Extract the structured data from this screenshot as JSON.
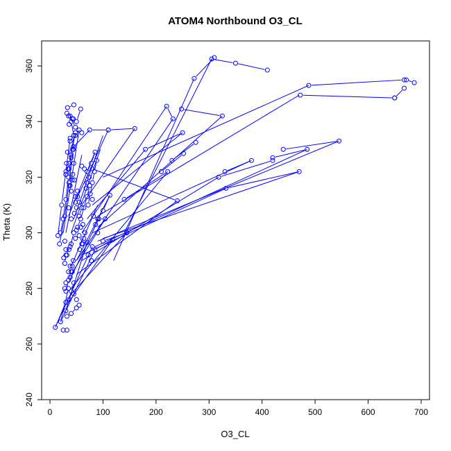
{
  "chart_data": {
    "type": "scatter",
    "title": "ATOM4 Northbound O3_CL",
    "xlabel": "O3_CL",
    "ylabel": "Theta (K)",
    "xlim": [
      0,
      700
    ],
    "ylim": [
      240,
      365
    ],
    "xticks": [
      0,
      100,
      200,
      300,
      400,
      500,
      600,
      700
    ],
    "yticks": [
      240,
      260,
      280,
      300,
      320,
      340,
      360
    ],
    "grid": false,
    "legend": "none",
    "color": "#0000ff",
    "marker": "open-circle",
    "connected": true,
    "series": [
      {
        "x": [
          305,
          350,
          410
        ],
        "y": [
          362.5,
          361,
          358.5
        ]
      },
      {
        "x": [
          272,
          310
        ],
        "y": [
          355.5,
          363
        ]
      },
      {
        "x": [
          672,
          687
        ],
        "y": [
          355,
          354
        ]
      },
      {
        "x": [
          488,
          668
        ],
        "y": [
          353,
          355
        ]
      },
      {
        "x": [
          650,
          668
        ],
        "y": [
          348.5,
          352
        ]
      },
      {
        "x": [
          472,
          650
        ],
        "y": [
          349.5,
          348.5
        ]
      },
      {
        "x": [
          248,
          325
        ],
        "y": [
          344.5,
          342
        ]
      },
      {
        "x": [
          220,
          232
        ],
        "y": [
          345.5,
          341
        ]
      },
      {
        "x": [
          33,
          45
        ],
        "y": [
          345,
          346
        ]
      },
      {
        "x": [
          58,
          50
        ],
        "y": [
          344.5,
          340
        ]
      },
      {
        "x": [
          32,
          44
        ],
        "y": [
          343,
          341
        ]
      },
      {
        "x": [
          38,
          48
        ],
        "y": [
          342,
          338
        ]
      },
      {
        "x": [
          110,
          160
        ],
        "y": [
          337,
          337.5
        ]
      },
      {
        "x": [
          75,
          110
        ],
        "y": [
          337,
          337
        ]
      },
      {
        "x": [
          55,
          60
        ],
        "y": [
          337,
          336
        ]
      },
      {
        "x": [
          250,
          180
        ],
        "y": [
          336,
          330
        ]
      },
      {
        "x": [
          275,
          230
        ],
        "y": [
          332.5,
          326
        ]
      },
      {
        "x": [
          252,
          210
        ],
        "y": [
          328.5,
          322
        ]
      },
      {
        "x": [
          485,
          420
        ],
        "y": [
          330,
          327
        ]
      },
      {
        "x": [
          545,
          440
        ],
        "y": [
          333,
          330
        ]
      },
      {
        "x": [
          380,
          330
        ],
        "y": [
          326,
          322
        ]
      },
      {
        "x": [
          20,
          25,
          30,
          35,
          40,
          45,
          40,
          35
        ],
        "y": [
          300,
          305,
          312,
          320,
          328,
          335,
          340,
          342
        ]
      },
      {
        "x": [
          15,
          22,
          30,
          38
        ],
        "y": [
          299,
          310,
          322,
          334
        ]
      },
      {
        "x": [
          18,
          28,
          36,
          44
        ],
        "y": [
          296,
          306,
          318,
          330
        ]
      },
      {
        "x": [
          30,
          36,
          42,
          48
        ],
        "y": [
          321,
          325,
          330,
          336
        ]
      },
      {
        "x": [
          60,
          65,
          70,
          78,
          85
        ],
        "y": [
          324,
          323,
          322,
          325,
          329
        ]
      },
      {
        "x": [
          88,
          84,
          80,
          76,
          72
        ],
        "y": [
          326,
          322,
          318,
          314,
          310
        ]
      },
      {
        "x": [
          75,
          70,
          64,
          58,
          52
        ],
        "y": [
          317,
          313,
          309,
          305,
          302
        ]
      },
      {
        "x": [
          60,
          55
        ],
        "y": [
          309,
          306
        ]
      },
      {
        "x": [
          240,
          80
        ],
        "y": [
          311.5,
          323
        ]
      },
      {
        "x": [
          222,
          140
        ],
        "y": [
          322,
          312
        ]
      },
      {
        "x": [
          113,
          100,
          90
        ],
        "y": [
          313.5,
          308,
          305
        ]
      },
      {
        "x": [
          92,
          104
        ],
        "y": [
          305,
          305
        ]
      },
      {
        "x": [
          145,
          100
        ],
        "y": [
          300,
          297
        ]
      },
      {
        "x": [
          118,
          85
        ],
        "y": [
          297.5,
          294
        ]
      },
      {
        "x": [
          80,
          70
        ],
        "y": [
          295,
          296.5
        ]
      },
      {
        "x": [
          62,
          55,
          50
        ],
        "y": [
          296,
          299,
          301
        ]
      },
      {
        "x": [
          45,
          38,
          30,
          28
        ],
        "y": [
          300,
          295,
          292,
          289
        ]
      },
      {
        "x": [
          40,
          35,
          30
        ],
        "y": [
          286,
          283,
          279
        ]
      },
      {
        "x": [
          45,
          40,
          36,
          30
        ],
        "y": [
          282,
          279,
          276,
          272
        ]
      },
      {
        "x": [
          50,
          40,
          32
        ],
        "y": [
          273,
          271,
          270
        ]
      },
      {
        "x": [
          10,
          30
        ],
        "y": [
          266,
          275
        ]
      },
      {
        "x": [
          20,
          35
        ],
        "y": [
          268,
          280
        ]
      },
      {
        "x": [
          25,
          32
        ],
        "y": [
          265,
          265
        ]
      },
      {
        "x": [
          318,
          420
        ],
        "y": [
          320,
          326
        ]
      },
      {
        "x": [
          332,
          470
        ],
        "y": [
          316,
          322
        ]
      }
    ],
    "lines_only": [
      {
        "x": [
          272,
          120
        ],
        "y": [
          355.5,
          290
        ]
      },
      {
        "x": [
          305,
          140
        ],
        "y": [
          362.5,
          300
        ]
      },
      {
        "x": [
          470,
          90
        ],
        "y": [
          349.5,
          306
        ]
      },
      {
        "x": [
          488,
          100
        ],
        "y": [
          353,
          320
        ]
      },
      {
        "x": [
          325,
          90
        ],
        "y": [
          342,
          302
        ]
      },
      {
        "x": [
          220,
          60
        ],
        "y": [
          345.5,
          300
        ]
      },
      {
        "x": [
          160,
          60
        ],
        "y": [
          337.5,
          310
        ]
      },
      {
        "x": [
          180,
          70
        ],
        "y": [
          330,
          305
        ]
      },
      {
        "x": [
          250,
          80
        ],
        "y": [
          336,
          310
        ]
      },
      {
        "x": [
          232,
          50
        ],
        "y": [
          341,
          290
        ]
      },
      {
        "x": [
          545,
          90
        ],
        "y": [
          333,
          297
        ]
      },
      {
        "x": [
          485,
          85
        ],
        "y": [
          330,
          295
        ]
      },
      {
        "x": [
          380,
          80
        ],
        "y": [
          326,
          300
        ]
      },
      {
        "x": [
          470,
          100
        ],
        "y": [
          322,
          298
        ]
      },
      {
        "x": [
          318,
          60
        ],
        "y": [
          320,
          290
        ]
      },
      {
        "x": [
          332,
          60
        ],
        "y": [
          316,
          292
        ]
      },
      {
        "x": [
          240,
          50
        ],
        "y": [
          311.5,
          285
        ]
      },
      {
        "x": [
          222,
          40
        ],
        "y": [
          322,
          280
        ]
      },
      {
        "x": [
          145,
          40
        ],
        "y": [
          300,
          278
        ]
      },
      {
        "x": [
          118,
          35
        ],
        "y": [
          297.5,
          275
        ]
      },
      {
        "x": [
          113,
          50
        ],
        "y": [
          313.5,
          290
        ]
      },
      {
        "x": [
          104,
          40
        ],
        "y": [
          305,
          285
        ]
      },
      {
        "x": [
          92,
          35
        ],
        "y": [
          305,
          282
        ]
      },
      {
        "x": [
          85,
          20
        ],
        "y": [
          294,
          268
        ]
      },
      {
        "x": [
          80,
          10
        ],
        "y": [
          295,
          266
        ]
      },
      {
        "x": [
          70,
          30
        ],
        "y": [
          296.5,
          272
        ]
      },
      {
        "x": [
          90,
          40
        ],
        "y": [
          310,
          288
        ]
      },
      {
        "x": [
          100,
          45
        ],
        "y": [
          335,
          305
        ]
      },
      {
        "x": [
          95,
          40
        ],
        "y": [
          330,
          300
        ]
      },
      {
        "x": [
          110,
          50
        ],
        "y": [
          337,
          312
        ]
      },
      {
        "x": [
          75,
          40
        ],
        "y": [
          337,
          330
        ]
      },
      {
        "x": [
          55,
          25
        ],
        "y": [
          337,
          300
        ]
      },
      {
        "x": [
          60,
          30
        ],
        "y": [
          328,
          300
        ]
      },
      {
        "x": [
          85,
          35
        ],
        "y": [
          329,
          306
        ]
      }
    ],
    "points_only": {
      "x": [
        42,
        36,
        48,
        38,
        44,
        33,
        40,
        45,
        36,
        30,
        42,
        38,
        52,
        48,
        55,
        50,
        46,
        40,
        62,
        58,
        66,
        70,
        74,
        68,
        80,
        82,
        86,
        90,
        64,
        60,
        56,
        72,
        78,
        42,
        35,
        38,
        30,
        28,
        45,
        50,
        55,
        48,
        40,
        36,
        32,
        44,
        38,
        42,
        28,
        30,
        26,
        35,
        48,
        52,
        40,
        37,
        46,
        43,
        34,
        31
      ],
      "y": [
        341,
        339,
        335,
        333,
        331,
        329,
        327,
        325,
        323,
        321,
        319,
        317,
        315,
        313,
        311,
        309,
        307,
        305,
        303,
        302,
        300,
        318,
        320,
        316,
        312,
        306,
        303,
        300,
        298,
        296,
        294,
        292,
        290,
        288,
        286,
        284,
        282,
        280,
        278,
        276,
        274,
        298,
        296,
        294,
        292,
        290,
        288,
        286,
        297,
        294,
        291,
        309,
        311,
        313,
        315,
        317,
        319,
        321,
        323,
        325
      ]
    }
  }
}
